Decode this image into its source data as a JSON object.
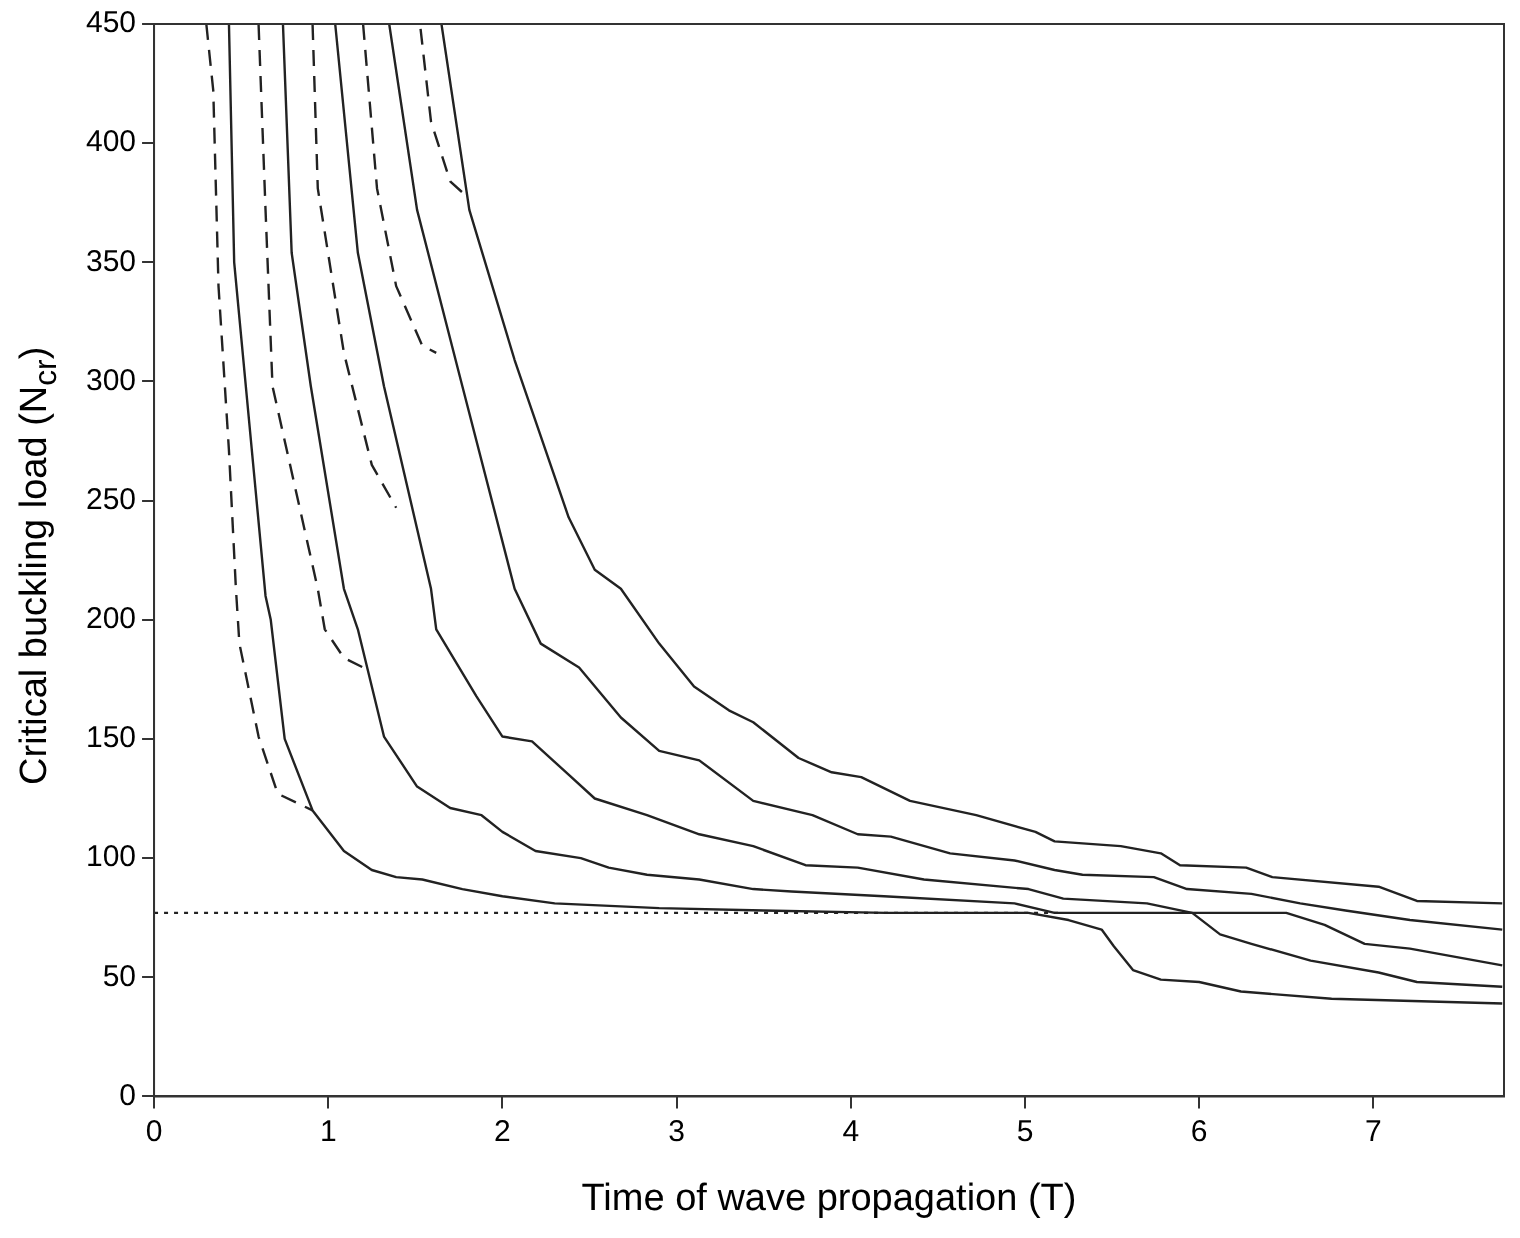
{
  "chart_data": {
    "type": "line",
    "xlabel": "Time of wave propagation (T)",
    "ylabel": "Critical buckling load (N$_{cr}$)",
    "xlim": [
      0,
      7.75
    ],
    "ylim": [
      0,
      450
    ],
    "xticks": [
      0,
      1,
      2,
      3,
      4,
      5,
      6,
      7
    ],
    "yticks": [
      0,
      50,
      100,
      150,
      200,
      250,
      300,
      350,
      400,
      450
    ],
    "grid": false,
    "marker": "none",
    "series": [
      {
        "color": "#222222",
        "line_style": "solid",
        "x": [
          0.43,
          0.46,
          0.64,
          0.67,
          0.75,
          0.91,
          1.09,
          1.25,
          1.39,
          1.54,
          1.77,
          2.0,
          2.3,
          2.9,
          3.5,
          4.2,
          5.02,
          5.25,
          5.44,
          5.51,
          5.62,
          5.78,
          6.0,
          6.24,
          6.76,
          7.74
        ],
        "values": [
          450,
          350,
          210,
          200,
          150,
          120,
          103,
          95,
          92,
          91,
          87,
          84,
          81,
          79,
          78,
          77,
          77,
          74,
          70,
          63,
          53,
          49,
          48,
          44,
          41,
          39
        ]
      },
      {
        "color": "#222222",
        "line_style": "solid",
        "x": [
          0.74,
          0.79,
          0.9,
          1.09,
          1.17,
          1.32,
          1.51,
          1.7,
          1.88,
          2.0,
          2.19,
          2.45,
          2.61,
          2.83,
          3.13,
          3.44,
          3.66,
          4.19,
          4.94,
          5.17,
          5.5,
          6.0,
          6.5,
          6.72,
          6.95,
          7.21,
          7.74
        ],
        "values": [
          450,
          354,
          298,
          213,
          196,
          151,
          130,
          121,
          118,
          111,
          103,
          100,
          96,
          93,
          91,
          87,
          86,
          84,
          81,
          77,
          77,
          77,
          77,
          72,
          64,
          62,
          55
        ]
      },
      {
        "color": "#222222",
        "line_style": "solid",
        "x": [
          1.04,
          1.17,
          1.32,
          1.59,
          1.62,
          1.85,
          2.0,
          2.17,
          2.38,
          2.53,
          2.83,
          3.13,
          3.44,
          3.74,
          4.04,
          4.42,
          5.02,
          5.22,
          5.7,
          5.96,
          6.12,
          6.3,
          6.64,
          7.03,
          7.25,
          7.74
        ],
        "values": [
          450,
          354,
          298,
          213,
          196,
          168,
          151,
          149,
          135,
          125,
          118,
          110,
          105,
          97,
          96,
          91,
          87,
          83,
          81,
          77,
          68,
          64,
          57,
          52,
          48,
          46
        ]
      },
      {
        "color": "#222222",
        "line_style": "solid",
        "x": [
          1.35,
          1.51,
          1.77,
          2.07,
          2.22,
          2.44,
          2.68,
          2.9,
          3.13,
          3.44,
          3.78,
          4.04,
          4.23,
          4.57,
          4.94,
          5.17,
          5.33,
          5.74,
          5.93,
          6.3,
          6.58,
          6.84,
          7.21,
          7.74
        ],
        "values": [
          450,
          372,
          298,
          213,
          190,
          180,
          159,
          145,
          141,
          124,
          118,
          110,
          109,
          102,
          99,
          95,
          93,
          92,
          87,
          85,
          81,
          78,
          74,
          70
        ]
      },
      {
        "color": "#222222",
        "line_style": "solid",
        "x": [
          1.65,
          1.81,
          2.07,
          2.38,
          2.53,
          2.68,
          2.9,
          3.1,
          3.3,
          3.44,
          3.7,
          3.89,
          4.06,
          4.34,
          4.72,
          5.06,
          5.17,
          5.55,
          5.78,
          5.89,
          6.27,
          6.42,
          7.03,
          7.25,
          7.74
        ],
        "values": [
          450,
          372,
          309,
          243,
          221,
          213,
          190,
          172,
          162,
          157,
          142,
          136,
          134,
          124,
          118,
          111,
          107,
          105,
          102,
          97,
          96,
          92,
          88,
          82,
          81
        ]
      },
      {
        "color": "#222222",
        "line_style": "dashed",
        "x": [
          0.3,
          0.34,
          0.37,
          0.43,
          0.47,
          0.49,
          0.6,
          0.71,
          0.91
        ],
        "values": [
          450,
          422,
          340,
          271,
          213,
          190,
          151,
          127,
          120
        ]
      },
      {
        "color": "#222222",
        "line_style": "dashed",
        "x": [
          0.6,
          0.64,
          0.68,
          0.94,
          0.98,
          1.09,
          1.2
        ],
        "values": [
          450,
          372,
          298,
          213,
          196,
          184,
          180
        ]
      },
      {
        "color": "#222222",
        "line_style": "dashed",
        "x": [
          0.91,
          0.94,
          1.09,
          1.25,
          1.39
        ],
        "values": [
          450,
          381,
          312,
          265,
          247
        ]
      },
      {
        "color": "#222222",
        "line_style": "dashed",
        "x": [
          1.2,
          1.28,
          1.39,
          1.54,
          1.62
        ],
        "values": [
          450,
          381,
          340,
          315,
          312
        ]
      },
      {
        "color": "#222222",
        "line_style": "dashed",
        "x": [
          1.53,
          1.59,
          1.7,
          1.79
        ],
        "values": [
          448,
          409,
          384,
          378
        ]
      },
      {
        "color": "#222222",
        "line_style": "dotted",
        "x": [
          0,
          5.2
        ],
        "values": [
          77,
          77
        ]
      }
    ]
  }
}
